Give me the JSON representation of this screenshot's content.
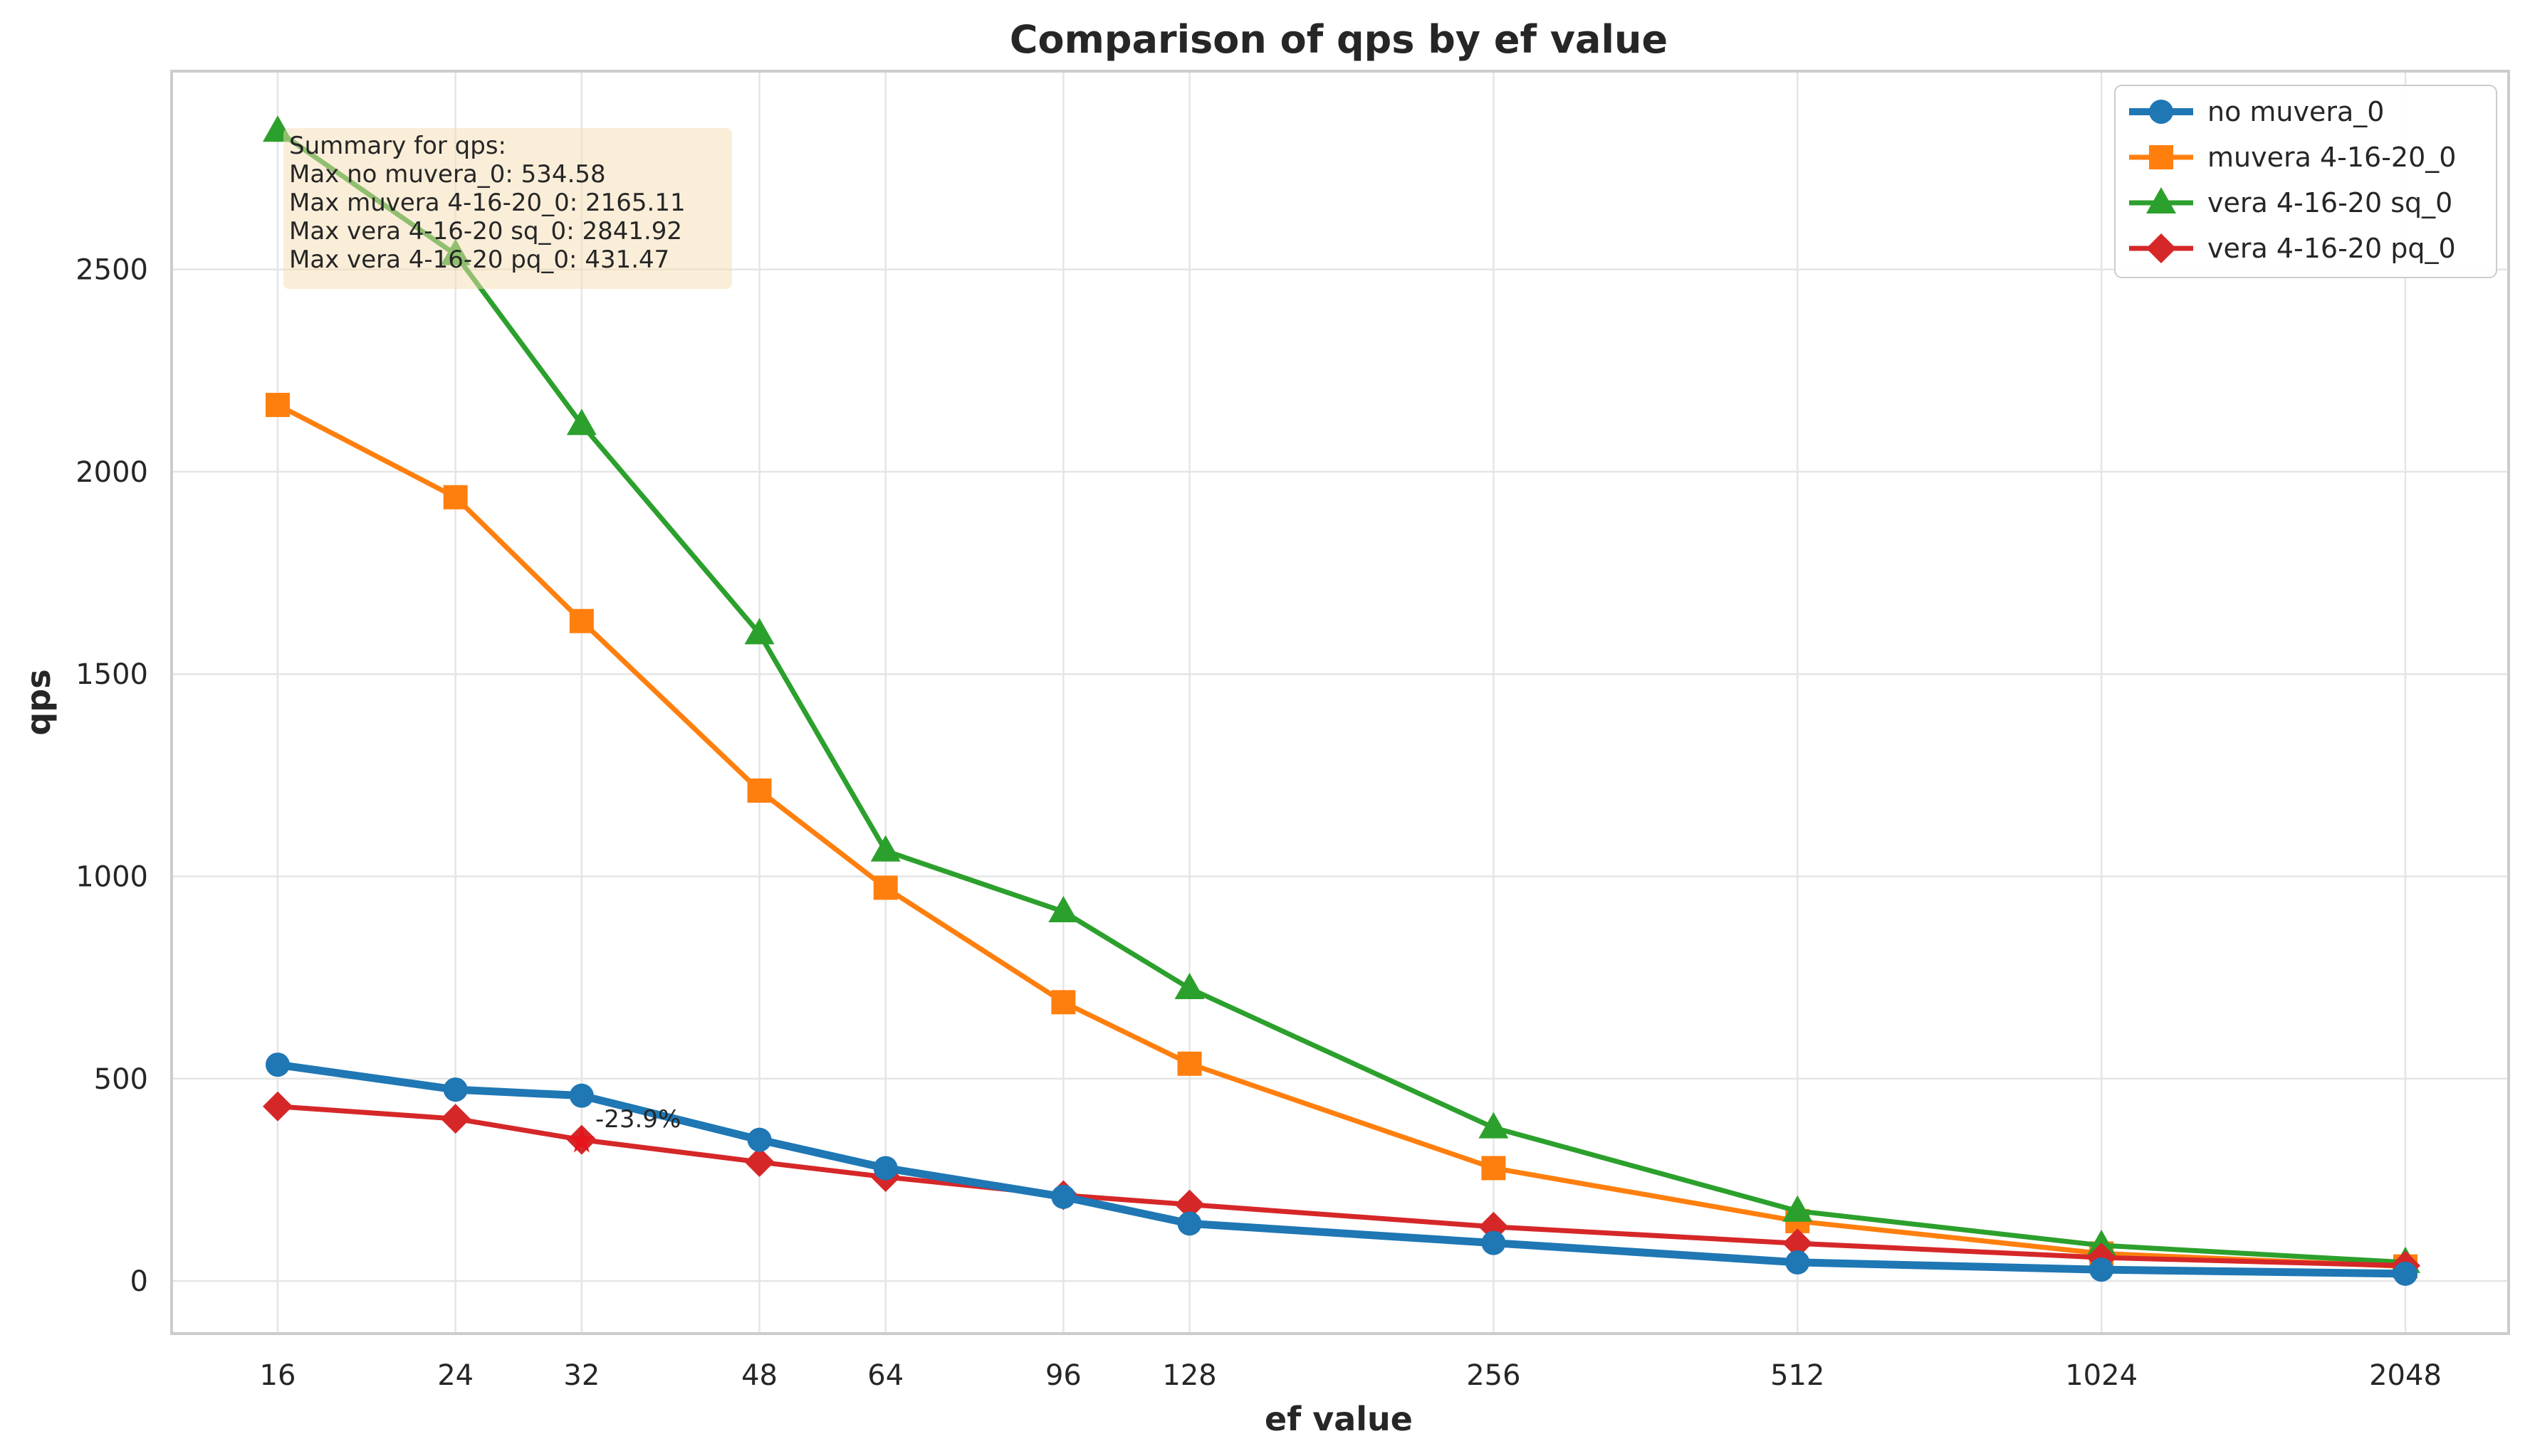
{
  "chart_data": {
    "type": "line",
    "title": "Comparison of qps by ef value",
    "xlabel": "ef value",
    "ylabel": "qps",
    "x_scale": "log2",
    "x": [
      16,
      24,
      32,
      48,
      64,
      96,
      128,
      256,
      512,
      1024,
      2048
    ],
    "x_tick_labels": [
      "16",
      "24",
      "32",
      "48",
      "64",
      "96",
      "128",
      "256",
      "512",
      "1024",
      "2048"
    ],
    "y_ticks": [
      0,
      500,
      1000,
      1500,
      2000,
      2500
    ],
    "y_tick_labels": [
      "0",
      "500",
      "1000",
      "1500",
      "2000",
      "2500"
    ],
    "ylim": [
      -130,
      2990
    ],
    "grid": true,
    "legend_position": "top-right",
    "series": [
      {
        "name": "no muvera_0",
        "color": "#1f77b4",
        "marker": "circle",
        "values": [
          534.58,
          473,
          458,
          349,
          279,
          208,
          142,
          94,
          46,
          28,
          18
        ]
      },
      {
        "name": "muvera 4-16-20_0",
        "color": "#ff7f0e",
        "marker": "square",
        "values": [
          2165.11,
          1937,
          1631,
          1212,
          972,
          689,
          537,
          279,
          148,
          68,
          36
        ]
      },
      {
        "name": "vera 4-16-20 sq_0",
        "color": "#2ca02c",
        "marker": "triangle",
        "values": [
          2841.92,
          2537,
          2117,
          1600,
          1063,
          913,
          723,
          379,
          173,
          88,
          46
        ]
      },
      {
        "name": "vera 4-16-20 pq_0",
        "color": "#d62728",
        "marker": "diamond",
        "values": [
          431.47,
          401,
          349,
          294,
          257,
          212,
          189,
          134,
          93,
          58,
          38
        ]
      }
    ],
    "summary_box": {
      "lines": [
        "Summary for qps:",
        "Max no muvera_0: 534.58",
        "Max muvera 4-16-20_0: 2165.11",
        "Max vera 4-16-20 sq_0: 2841.92",
        "Max vera 4-16-20 pq_0: 431.47"
      ]
    },
    "annotations": [
      {
        "text": "-23.9%",
        "x": 32,
        "y": 349,
        "marker_color": "#e8141c"
      }
    ]
  }
}
